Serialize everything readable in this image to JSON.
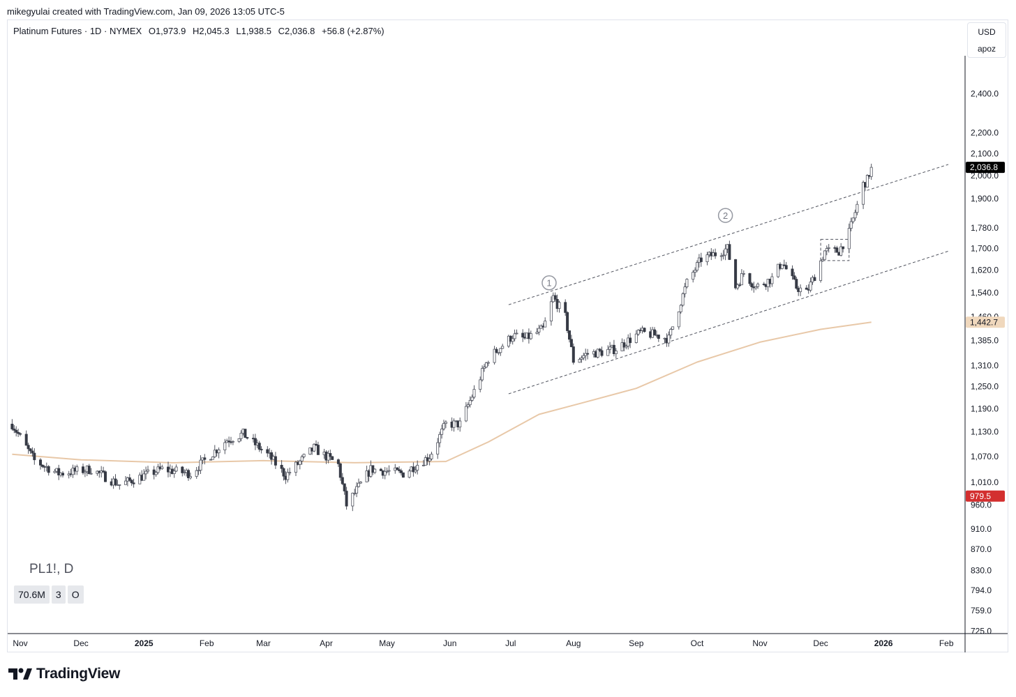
{
  "header": {
    "text": "mikegyulai created with TradingView.com, Jan 09, 2026 13:05 UTC-5"
  },
  "legend": {
    "title": "Platinum Futures · 1D · NYMEX",
    "open": "O1,973.9",
    "high": "H2,045.3",
    "low": "L1,938.5",
    "close": "C2,036.8",
    "change": "+56.8 (+2.87%)"
  },
  "price_axis": {
    "currency_label": "USD",
    "scale_label": "apoz",
    "last_price_label": "2,036.8",
    "ma_label": "1,442.7",
    "red_label": "979.5"
  },
  "symbol_label": "PL1!, D",
  "badges": [
    "70.6M",
    "3",
    "O"
  ],
  "annotations": [
    "1",
    "2"
  ],
  "logo_text": "TradingView",
  "colors": {
    "up_candle": "#ffffff",
    "down_candle": "#363a45",
    "ma_line": "#e8c8a8",
    "last_price_bg": "#000000",
    "ma_label_bg": "#f0d8bd",
    "red_label_bg": "#d32f2f"
  },
  "chart_data": {
    "type": "candlestick",
    "symbol": "PL1!",
    "interval": "D",
    "scale": "log",
    "ylim": [
      725,
      2500
    ],
    "y_ticks": [
      "2,400.0",
      "2,200.0",
      "2,100.0",
      "2,000.0",
      "1,900.0",
      "1,780.0",
      "1,700.0",
      "1,620.0",
      "1,540.0",
      "1,460.0",
      "1,385.0",
      "1,310.0",
      "1,250.0",
      "1,190.0",
      "1,130.0",
      "1,070.0",
      "1,010.0",
      "960.0",
      "910.0",
      "870.0",
      "830.0",
      "794.0",
      "759.0",
      "725.0"
    ],
    "x_ticks": [
      "Nov",
      "Dec",
      "2025",
      "Feb",
      "Mar",
      "Apr",
      "May",
      "Jun",
      "Jul",
      "Aug",
      "Sep",
      "Oct",
      "Nov",
      "Dec",
      "2026",
      "Feb"
    ],
    "price_anchors": [
      {
        "date": "2024-10-28",
        "close": 1150
      },
      {
        "date": "2024-11-08",
        "close": 1060
      },
      {
        "date": "2024-11-20",
        "close": 1030
      },
      {
        "date": "2024-12-06",
        "close": 1040
      },
      {
        "date": "2024-12-20",
        "close": 1005
      },
      {
        "date": "2025-01-10",
        "close": 1040
      },
      {
        "date": "2025-01-24",
        "close": 1030
      },
      {
        "date": "2025-02-11",
        "close": 1110
      },
      {
        "date": "2025-02-19",
        "close": 1125
      },
      {
        "date": "2025-03-04",
        "close": 1070
      },
      {
        "date": "2025-03-12",
        "close": 1025
      },
      {
        "date": "2025-03-26",
        "close": 1090
      },
      {
        "date": "2025-04-07",
        "close": 1050
      },
      {
        "date": "2025-04-11",
        "close": 960
      },
      {
        "date": "2025-04-23",
        "close": 1040
      },
      {
        "date": "2025-05-09",
        "close": 1030
      },
      {
        "date": "2025-05-22",
        "close": 1070
      },
      {
        "date": "2025-05-30",
        "close": 1150
      },
      {
        "date": "2025-06-06",
        "close": 1150
      },
      {
        "date": "2025-06-20",
        "close": 1330
      },
      {
        "date": "2025-07-02",
        "close": 1400
      },
      {
        "date": "2025-07-08",
        "close": 1390
      },
      {
        "date": "2025-07-17",
        "close": 1420
      },
      {
        "date": "2025-07-22",
        "close": 1525
      },
      {
        "date": "2025-07-28",
        "close": 1460
      },
      {
        "date": "2025-08-01",
        "close": 1325
      },
      {
        "date": "2025-08-08",
        "close": 1345
      },
      {
        "date": "2025-08-15",
        "close": 1350
      },
      {
        "date": "2025-08-22",
        "close": 1360
      },
      {
        "date": "2025-09-03",
        "close": 1410
      },
      {
        "date": "2025-09-12",
        "close": 1400
      },
      {
        "date": "2025-09-17",
        "close": 1390
      },
      {
        "date": "2025-09-26",
        "close": 1575
      },
      {
        "date": "2025-10-03",
        "close": 1660
      },
      {
        "date": "2025-10-10",
        "close": 1680
      },
      {
        "date": "2025-10-16",
        "close": 1700
      },
      {
        "date": "2025-10-20",
        "close": 1560
      },
      {
        "date": "2025-10-24",
        "close": 1610
      },
      {
        "date": "2025-10-30",
        "close": 1560
      },
      {
        "date": "2025-11-07",
        "close": 1590
      },
      {
        "date": "2025-11-12",
        "close": 1650
      },
      {
        "date": "2025-11-19",
        "close": 1560
      },
      {
        "date": "2025-11-24",
        "close": 1540
      },
      {
        "date": "2025-11-28",
        "close": 1600
      },
      {
        "date": "2025-12-03",
        "close": 1690
      },
      {
        "date": "2025-12-10",
        "close": 1690
      },
      {
        "date": "2025-12-15",
        "close": 1760
      },
      {
        "date": "2025-12-22",
        "close": 1960
      },
      {
        "date": "2025-12-24",
        "close": 1980
      },
      {
        "date": "2025-12-26",
        "close": 2036.8
      }
    ],
    "moving_average": [
      {
        "date": "2024-10-28",
        "value": 1075
      },
      {
        "date": "2024-12-01",
        "value": 1062
      },
      {
        "date": "2025-01-15",
        "value": 1055
      },
      {
        "date": "2025-03-01",
        "value": 1060
      },
      {
        "date": "2025-04-15",
        "value": 1055
      },
      {
        "date": "2025-05-30",
        "value": 1058
      },
      {
        "date": "2025-06-20",
        "value": 1105
      },
      {
        "date": "2025-07-15",
        "value": 1175
      },
      {
        "date": "2025-08-05",
        "value": 1205
      },
      {
        "date": "2025-09-01",
        "value": 1245
      },
      {
        "date": "2025-10-01",
        "value": 1320
      },
      {
        "date": "2025-11-01",
        "value": 1380
      },
      {
        "date": "2025-12-01",
        "value": 1420
      },
      {
        "date": "2025-12-26",
        "value": 1442.7
      }
    ],
    "trendlines": [
      {
        "from": {
          "date": "2025-06-30",
          "price": 1500
        },
        "to": {
          "date": "2026-02-02",
          "price": 2050
        }
      },
      {
        "from": {
          "date": "2025-06-30",
          "price": 1230
        },
        "to": {
          "date": "2026-02-02",
          "price": 1690
        }
      }
    ],
    "range_box": {
      "from_date": "2025-12-01",
      "to_date": "2025-12-15",
      "top": 1735,
      "bottom": 1655
    },
    "wave_labels": [
      {
        "label": "1",
        "date": "2025-07-20",
        "price": 1575
      },
      {
        "label": "2",
        "date": "2025-10-15",
        "price": 1830
      }
    ],
    "last_price": 2036.8
  }
}
